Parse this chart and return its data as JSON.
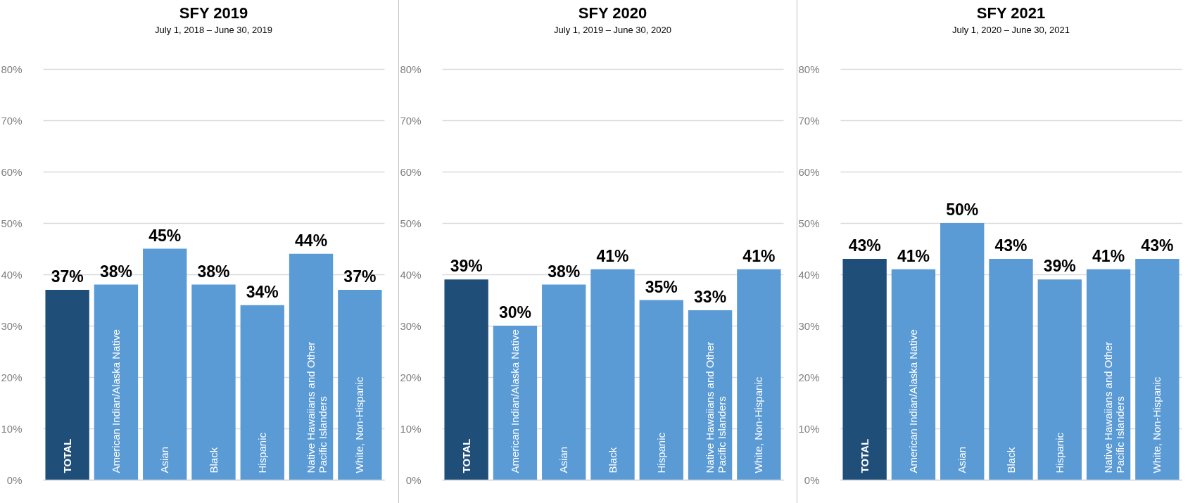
{
  "chart_data": [
    {
      "type": "bar",
      "title": "SFY 2019",
      "subtitle": "July 1, 2018 – June 30, 2019",
      "categories": [
        "TOTAL",
        "American Indian/Alaska Native",
        "Asian",
        "Black",
        "Hispanic",
        "Native Hawaiians and Other Pacific Islanders",
        "White, Non-Hispanic"
      ],
      "values": [
        37,
        38,
        45,
        38,
        34,
        44,
        37
      ],
      "colors": [
        "#1f4e79",
        "#5b9bd5",
        "#5b9bd5",
        "#5b9bd5",
        "#5b9bd5",
        "#5b9bd5",
        "#5b9bd5"
      ],
      "ylim": [
        0,
        80
      ],
      "yticks": [
        {
          "value": 0,
          "label": "0%"
        },
        {
          "value": 10,
          "label": "10%"
        },
        {
          "value": 20,
          "label": "20%"
        },
        {
          "value": 30,
          "label": "30%"
        },
        {
          "value": 40,
          "label": "40%"
        },
        {
          "value": 50,
          "label": "50%"
        },
        {
          "value": 60,
          "label": "60%"
        },
        {
          "value": 70,
          "label": "70%"
        },
        {
          "value": 80,
          "label": "80%"
        }
      ],
      "value_labels": [
        "37%",
        "38%",
        "45%",
        "38%",
        "34%",
        "44%",
        "37%"
      ],
      "grid": "y",
      "legend": false
    },
    {
      "type": "bar",
      "title": "SFY 2020",
      "subtitle": "July 1, 2019 – June 30, 2020",
      "categories": [
        "TOTAL",
        "American Indian/Alaska Native",
        "Asian",
        "Black",
        "Hispanic",
        "Native Hawaiians and Other Pacific Islanders",
        "White, Non-Hispanic"
      ],
      "values": [
        39,
        30,
        38,
        41,
        35,
        33,
        41
      ],
      "colors": [
        "#1f4e79",
        "#5b9bd5",
        "#5b9bd5",
        "#5b9bd5",
        "#5b9bd5",
        "#5b9bd5",
        "#5b9bd5"
      ],
      "ylim": [
        0,
        80
      ],
      "yticks": [
        {
          "value": 0,
          "label": "0%"
        },
        {
          "value": 10,
          "label": "10%"
        },
        {
          "value": 20,
          "label": "20%"
        },
        {
          "value": 30,
          "label": "30%"
        },
        {
          "value": 40,
          "label": "40%"
        },
        {
          "value": 50,
          "label": "50%"
        },
        {
          "value": 60,
          "label": "60%"
        },
        {
          "value": 70,
          "label": "70%"
        },
        {
          "value": 80,
          "label": "80%"
        }
      ],
      "value_labels": [
        "39%",
        "30%",
        "38%",
        "41%",
        "35%",
        "33%",
        "41%"
      ],
      "grid": "y",
      "legend": false
    },
    {
      "type": "bar",
      "title": "SFY 2021",
      "subtitle": "July 1, 2020 – June 30, 2021",
      "categories": [
        "TOTAL",
        "American Indian/Alaska Native",
        "Asian",
        "Black",
        "Hispanic",
        "Native Hawaiians and Other Pacific Islanders",
        "White, Non-Hispanic"
      ],
      "values": [
        43,
        41,
        50,
        43,
        39,
        41,
        43
      ],
      "colors": [
        "#1f4e79",
        "#5b9bd5",
        "#5b9bd5",
        "#5b9bd5",
        "#5b9bd5",
        "#5b9bd5",
        "#5b9bd5"
      ],
      "ylim": [
        0,
        80
      ],
      "yticks": [
        {
          "value": 0,
          "label": "0%"
        },
        {
          "value": 10,
          "label": "10%"
        },
        {
          "value": 20,
          "label": "20%"
        },
        {
          "value": 30,
          "label": "30%"
        },
        {
          "value": 40,
          "label": "40%"
        },
        {
          "value": 50,
          "label": "50%"
        },
        {
          "value": 60,
          "label": "60%"
        },
        {
          "value": 70,
          "label": "70%"
        },
        {
          "value": 80,
          "label": "80%"
        }
      ],
      "value_labels": [
        "43%",
        "41%",
        "50%",
        "43%",
        "39%",
        "41%",
        "43%"
      ],
      "grid": "y",
      "legend": false
    }
  ]
}
